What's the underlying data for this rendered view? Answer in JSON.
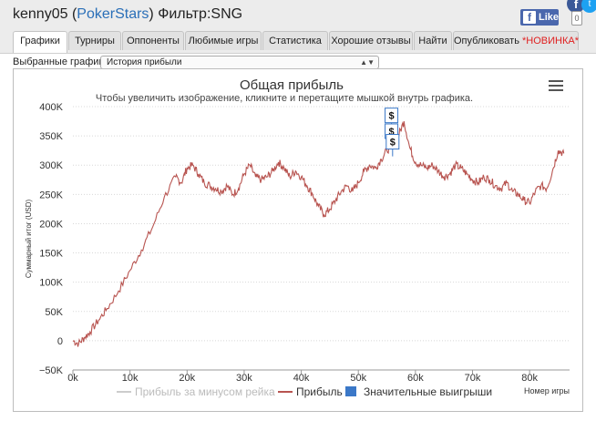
{
  "header": {
    "user": "kenny05",
    "site": "PokerStars",
    "filter": "Фильтр:SNG",
    "like_label": "Like",
    "fb_glyph": "f",
    "twitter_glyph": "t",
    "bookmark_glyph": "0"
  },
  "icons": {
    "facebook": "facebook-icon",
    "twitter": "twitter-icon",
    "menu": "hamburger-icon"
  },
  "tabs": [
    {
      "label": "Графики",
      "active": true,
      "new": ""
    },
    {
      "label": "Турниры",
      "active": false,
      "new": ""
    },
    {
      "label": "Оппоненты",
      "active": false,
      "new": ""
    },
    {
      "label": "Любимые игры",
      "active": false,
      "new": ""
    },
    {
      "label": "Статистика",
      "active": false,
      "new": ""
    },
    {
      "label": "Хорошие отзывы",
      "active": false,
      "new": ""
    },
    {
      "label": "Найти",
      "active": false,
      "new": ""
    },
    {
      "label": "Опубликовать",
      "active": false,
      "new": "*НОВИНКА*"
    }
  ],
  "selector": {
    "label": "Выбранные графики:",
    "value": "История прибыли"
  },
  "chart_data": {
    "type": "line",
    "title": "Общая прибыль",
    "subtitle": "Чтобы увеличить изображение, кликните и перетащите мышкой внутрь графика.",
    "xlabel": "Номер игры",
    "ylabel": "Суммарный итог (USD)",
    "xlim": [
      0,
      87000
    ],
    "ylim": [
      -50000,
      400000
    ],
    "x_ticks": [
      {
        "value": 0,
        "label": "0k"
      },
      {
        "value": 10000,
        "label": "10k"
      },
      {
        "value": 20000,
        "label": "20k"
      },
      {
        "value": 30000,
        "label": "30k"
      },
      {
        "value": 40000,
        "label": "40k"
      },
      {
        "value": 50000,
        "label": "50k"
      },
      {
        "value": 60000,
        "label": "60k"
      },
      {
        "value": 70000,
        "label": "70k"
      },
      {
        "value": 80000,
        "label": "80k"
      }
    ],
    "y_ticks": [
      {
        "value": -50000,
        "label": "−50K"
      },
      {
        "value": 0,
        "label": "0"
      },
      {
        "value": 50000,
        "label": "50K"
      },
      {
        "value": 100000,
        "label": "100K"
      },
      {
        "value": 150000,
        "label": "150K"
      },
      {
        "value": 200000,
        "label": "200K"
      },
      {
        "value": 250000,
        "label": "250K"
      },
      {
        "value": 300000,
        "label": "300K"
      },
      {
        "value": 350000,
        "label": "350K"
      },
      {
        "value": 400000,
        "label": "400K"
      }
    ],
    "grid": true,
    "series": [
      {
        "name": "Прибыль",
        "color": "#b85450",
        "x": [
          0,
          1000,
          2000,
          3000,
          4500,
          6000,
          8000,
          10000,
          12000,
          14000,
          16000,
          18000,
          19000,
          20000,
          21000,
          22000,
          23000,
          24000,
          25000,
          26000,
          27000,
          28000,
          29000,
          30000,
          31000,
          32000,
          33000,
          34000,
          35000,
          36000,
          37000,
          38000,
          39000,
          40000,
          41000,
          42000,
          43000,
          44000,
          45000,
          46000,
          47000,
          48000,
          49000,
          50000,
          51000,
          52000,
          53000,
          54000,
          55000,
          56000,
          57000,
          58000,
          59000,
          60000,
          61000,
          62000,
          63000,
          64000,
          65000,
          66000,
          67000,
          68000,
          69000,
          70000,
          71000,
          72000,
          73000,
          74000,
          75000,
          76000,
          77000,
          78000,
          79000,
          80000,
          81000,
          82000,
          83000,
          84000,
          85000,
          86000
        ],
        "values": [
          0,
          -5000,
          5000,
          15000,
          35000,
          55000,
          85000,
          120000,
          155000,
          195000,
          245000,
          280000,
          270000,
          295000,
          300000,
          285000,
          270000,
          265000,
          260000,
          255000,
          265000,
          250000,
          260000,
          285000,
          300000,
          280000,
          275000,
          280000,
          290000,
          305000,
          295000,
          280000,
          290000,
          280000,
          265000,
          250000,
          230000,
          215000,
          225000,
          240000,
          255000,
          265000,
          255000,
          270000,
          290000,
          300000,
          295000,
          310000,
          325000,
          335000,
          350000,
          375000,
          330000,
          305000,
          300000,
          295000,
          300000,
          290000,
          280000,
          285000,
          300000,
          295000,
          285000,
          275000,
          270000,
          280000,
          275000,
          265000,
          260000,
          270000,
          255000,
          250000,
          240000,
          235000,
          255000,
          265000,
          260000,
          290000,
          325000,
          320000
        ]
      }
    ],
    "markers": [
      {
        "x": 55800,
        "y": 385000,
        "label": "$"
      },
      {
        "x": 55800,
        "y": 358000,
        "label": "$"
      },
      {
        "x": 56000,
        "y": 340000,
        "label": "$"
      }
    ],
    "legend": [
      {
        "label": "Прибыль за минусом рейка",
        "color": "#cccccc",
        "enabled": false
      },
      {
        "label": "Прибыль",
        "color": "#b85450",
        "enabled": true
      },
      {
        "label": "Значительные выигрыши",
        "color": "#3b78c8",
        "enabled": true
      }
    ],
    "legend_position": "bottom-center"
  }
}
